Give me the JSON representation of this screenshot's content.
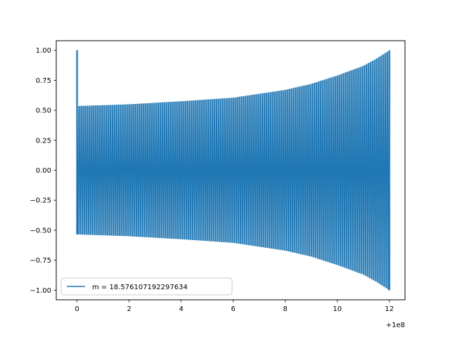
{
  "chart_data": {
    "type": "line",
    "title": "",
    "xlabel": "",
    "ylabel": "",
    "xlim": [
      -0.8,
      12.6
    ],
    "ylim": [
      -1.08,
      1.08
    ],
    "x_offset_label": "+1e8",
    "x_ticks": [
      0,
      2,
      4,
      6,
      8,
      10,
      12
    ],
    "x_tick_labels": [
      "0",
      "2",
      "4",
      "6",
      "8",
      "10",
      "12"
    ],
    "y_ticks": [
      -1.0,
      -0.75,
      -0.5,
      -0.25,
      0.0,
      0.25,
      0.5,
      0.75,
      1.0
    ],
    "y_tick_labels": [
      "−1.00",
      "−0.75",
      "−0.50",
      "−0.25",
      "0.00",
      "0.25",
      "0.50",
      "0.75",
      "1.00"
    ],
    "grid": false,
    "legend_position": "lower-left",
    "series": [
      {
        "name": "m = 18.576107192297634",
        "color": "#1f77b4",
        "x_range": [
          0,
          12
        ],
        "start_value": 1.0,
        "envelope": [
          [
            0.0,
            0.535
          ],
          [
            2.0,
            0.55
          ],
          [
            4.0,
            0.575
          ],
          [
            6.0,
            0.605
          ],
          [
            8.0,
            0.67
          ],
          [
            9.0,
            0.72
          ],
          [
            10.0,
            0.79
          ],
          [
            11.0,
            0.87
          ],
          [
            11.5,
            0.93
          ],
          [
            12.0,
            1.0
          ]
        ],
        "oscillation_count": 150
      }
    ]
  }
}
